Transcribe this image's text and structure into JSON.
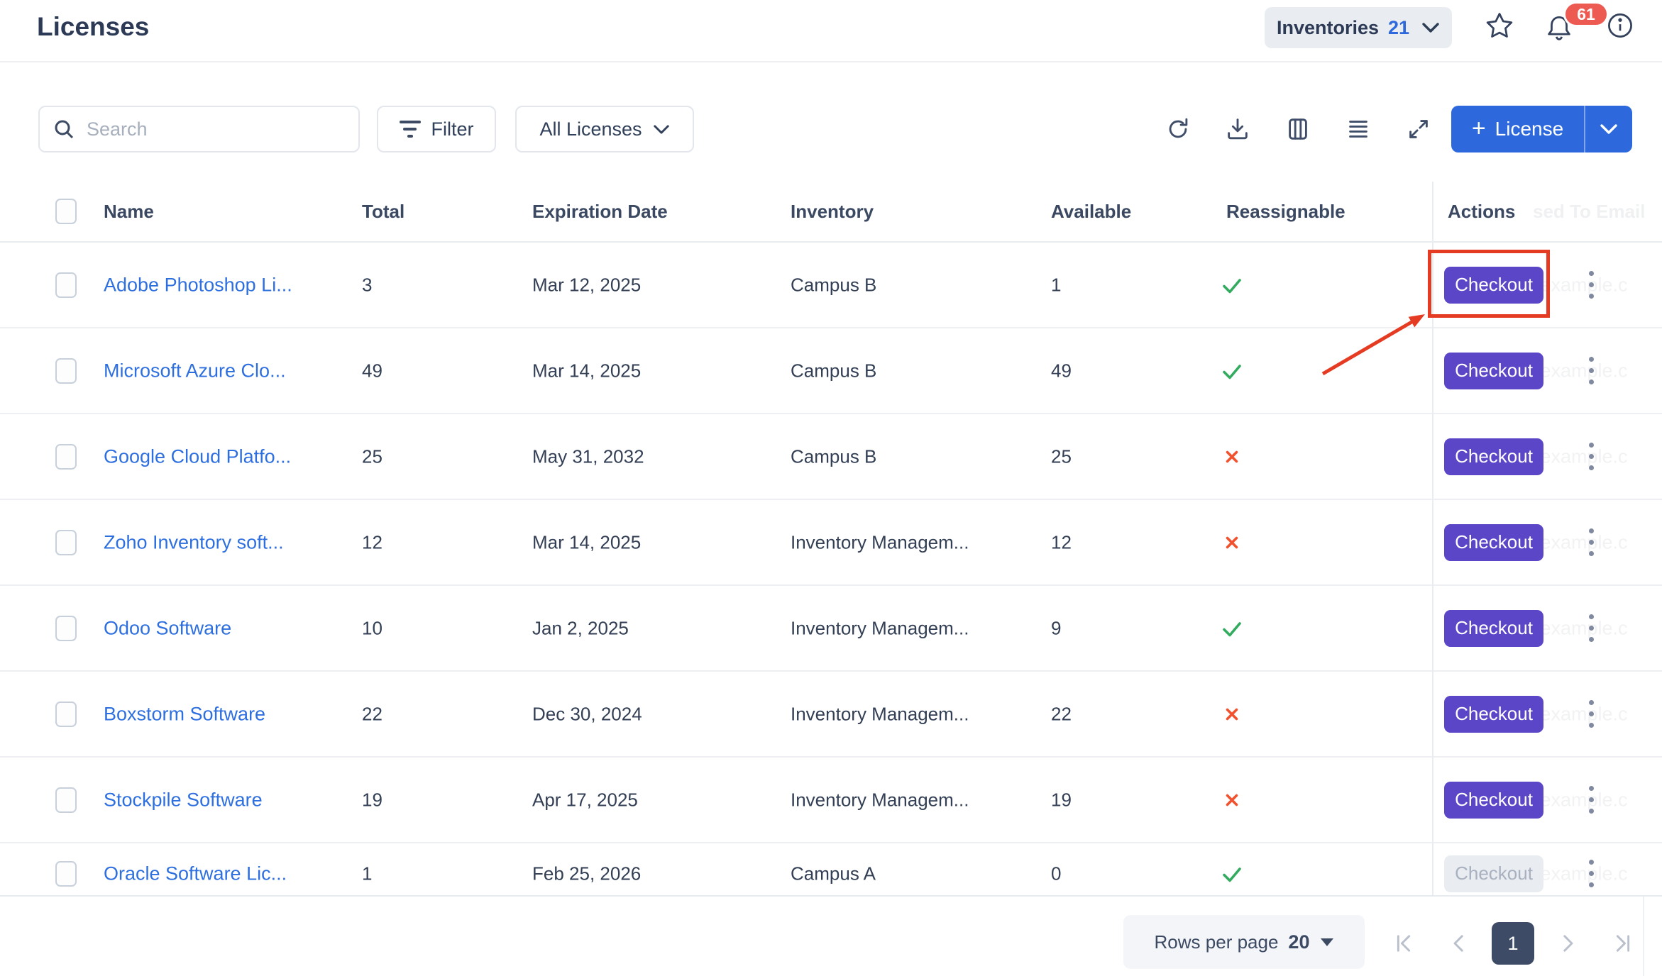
{
  "header": {
    "title": "Licenses",
    "inventories_label": "Inventories",
    "inventories_count": "21",
    "notification_count": "61"
  },
  "toolbar": {
    "search_placeholder": "Search",
    "filter_label": "Filter",
    "scope_label": "All Licenses",
    "add_label": "License",
    "icons": [
      "refresh-icon",
      "download-icon",
      "columns-icon",
      "list-view-icon",
      "expand-icon"
    ]
  },
  "table": {
    "columns": [
      "Name",
      "Total",
      "Expiration Date",
      "Inventory",
      "Available",
      "Reassignable",
      "Actions"
    ],
    "hidden_column_ghost": "sed To Email",
    "row_ghost_email": "e@example.c",
    "checkout_label": "Checkout",
    "rows": [
      {
        "name": "Adobe Photoshop Li...",
        "total": "3",
        "expiration": "Mar 12, 2025",
        "inventory": "Campus B",
        "available": "1",
        "reassignable": true,
        "checkout_enabled": true,
        "highlighted": true
      },
      {
        "name": "Microsoft Azure Clo...",
        "total": "49",
        "expiration": "Mar 14, 2025",
        "inventory": "Campus B",
        "available": "49",
        "reassignable": true,
        "checkout_enabled": true
      },
      {
        "name": "Google Cloud Platfo...",
        "total": "25",
        "expiration": "May 31, 2032",
        "inventory": "Campus B",
        "available": "25",
        "reassignable": false,
        "checkout_enabled": true
      },
      {
        "name": "Zoho Inventory soft...",
        "total": "12",
        "expiration": "Mar 14, 2025",
        "inventory": "Inventory Managem...",
        "available": "12",
        "reassignable": false,
        "checkout_enabled": true
      },
      {
        "name": "Odoo Software",
        "total": "10",
        "expiration": "Jan 2, 2025",
        "inventory": "Inventory Managem...",
        "available": "9",
        "reassignable": true,
        "checkout_enabled": true
      },
      {
        "name": "Boxstorm Software",
        "total": "22",
        "expiration": "Dec 30, 2024",
        "inventory": "Inventory Managem...",
        "available": "22",
        "reassignable": false,
        "checkout_enabled": true
      },
      {
        "name": "Stockpile Software",
        "total": "19",
        "expiration": "Apr 17, 2025",
        "inventory": "Inventory Managem...",
        "available": "19",
        "reassignable": false,
        "checkout_enabled": true
      },
      {
        "name": "Oracle Software Lic...",
        "total": "1",
        "expiration": "Feb 25, 2026",
        "inventory": "Campus A",
        "available": "0",
        "reassignable": true,
        "checkout_enabled": false
      }
    ]
  },
  "footer": {
    "rows_per_page_label": "Rows per page",
    "rows_per_page_value": "20",
    "current_page": "1"
  },
  "colors": {
    "accent_blue": "#2d69dd",
    "link_blue": "#2e6fdf",
    "checkout_purple": "#5a46c7",
    "success_green": "#32ab5e",
    "error_red": "#f2512e",
    "badge_red": "#ed5a52",
    "annotation_red": "#e53b22",
    "page_number_bg": "#3d4b66"
  }
}
